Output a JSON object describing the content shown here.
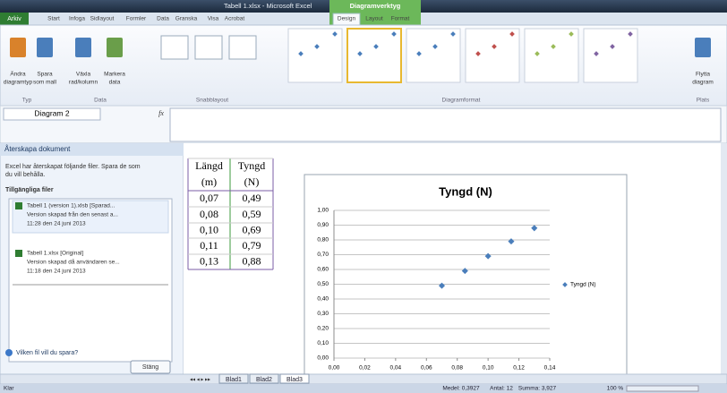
{
  "window": {
    "title": "Tabell 1.xlsx - Microsoft Excel",
    "context_tab": "Diagramverktyg"
  },
  "ribbon": {
    "file_tab": "Arkiv",
    "tabs": [
      "Start",
      "Infoga",
      "Sidlayout",
      "Formler",
      "Data",
      "Granska",
      "Visa",
      "Acrobat",
      "Design",
      "Layout",
      "Format"
    ],
    "groups": [
      {
        "label": "Typ",
        "buttons": [
          [
            "Ändra",
            "diagramtyp"
          ],
          [
            "Spara",
            "som mall"
          ]
        ]
      },
      {
        "label": "Data",
        "buttons": [
          [
            "Växla",
            "rad/kolumn"
          ],
          [
            "Markera",
            "data"
          ]
        ]
      },
      {
        "label": "Snabblayout"
      },
      {
        "label": "Diagramformat"
      },
      {
        "label": "Plats",
        "buttons": [
          [
            "Flytta",
            "diagram"
          ]
        ]
      }
    ]
  },
  "formula_bar": {
    "name_box": "Diagram 2",
    "fx": "fx"
  },
  "recovery_pane": {
    "title": "Återskapa dokument",
    "message": [
      "Excel har återskapat följande filer. Spara de som",
      "du vill behålla."
    ],
    "files_heading": "Tillgängliga filer",
    "files": [
      [
        "Tabell 1 (version 1).xlsb  [Sparad...",
        "Version skapad från den senast a...",
        "11:28 den 24 juni 2013"
      ],
      [
        "Tabell 1.xlsx  [Original]",
        "Version skapad då användaren se...",
        "11:18 den 24 juni 2013"
      ]
    ],
    "help": "Vilken fil vill du spara?",
    "close": "Stäng"
  },
  "table": {
    "headers": [
      [
        "Längd",
        "(m)"
      ],
      [
        "Tyngd",
        "(N)"
      ]
    ],
    "rows": [
      [
        "0,07",
        "0,49"
      ],
      [
        "0,08",
        "0,59"
      ],
      [
        "0,10",
        "0,69"
      ],
      [
        "0,11",
        "0,79"
      ],
      [
        "0,13",
        "0,88"
      ]
    ]
  },
  "chart_data": {
    "type": "scatter",
    "title": "Tyngd (N)",
    "x": [
      0.07,
      0.085,
      0.1,
      0.115,
      0.13
    ],
    "series": [
      {
        "name": "Tyngd (N)",
        "color": "#4a7ebb",
        "values": [
          0.49,
          0.59,
          0.69,
          0.79,
          0.88
        ]
      }
    ],
    "xlim": [
      0,
      0.14
    ],
    "xticks": [
      {
        "value": 0,
        "label": "0,00"
      },
      {
        "value": 0.02,
        "label": "0,02"
      },
      {
        "value": 0.04,
        "label": "0,04"
      },
      {
        "value": 0.06,
        "label": "0,06"
      },
      {
        "value": 0.08,
        "label": "0,08"
      },
      {
        "value": 0.1,
        "label": "0,10"
      },
      {
        "value": 0.12,
        "label": "0,12"
      },
      {
        "value": 0.14,
        "label": "0,14"
      }
    ],
    "ylim": [
      0,
      1
    ],
    "yticks": [
      {
        "value": 0,
        "label": "0,00"
      },
      {
        "value": 0.1,
        "label": "0,10"
      },
      {
        "value": 0.2,
        "label": "0,20"
      },
      {
        "value": 0.3,
        "label": "0,30"
      },
      {
        "value": 0.4,
        "label": "0,40"
      },
      {
        "value": 0.5,
        "label": "0,50"
      },
      {
        "value": 0.6,
        "label": "0,60"
      },
      {
        "value": 0.7,
        "label": "0,70"
      },
      {
        "value": 0.8,
        "label": "0,80"
      },
      {
        "value": 0.9,
        "label": "0,90"
      },
      {
        "value": 1,
        "label": "1,00"
      }
    ],
    "grid": true,
    "legend": "right"
  },
  "sheet_tabs": [
    "Blad1",
    "Blad2",
    "Blad3"
  ],
  "status_bar": {
    "ready": "Klar",
    "average": "Medel: 0,3927",
    "count": "Antal: 12",
    "sum": "Summa: 3,927",
    "zoom": "100 %"
  }
}
